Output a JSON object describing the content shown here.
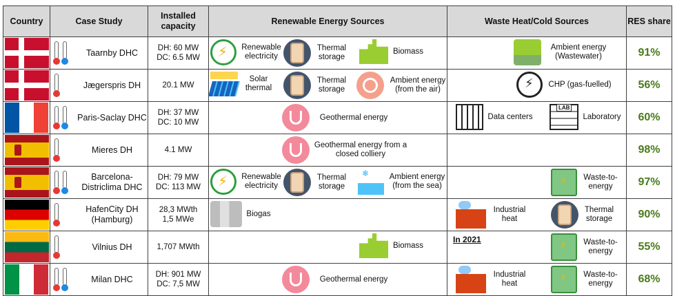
{
  "header": {
    "country": "Country",
    "case_study": "Case Study",
    "capacity": "Installed capacity",
    "renewable": "Renewable Energy Sources",
    "waste": "Waste Heat/Cold Sources",
    "res": "RES share"
  },
  "rows": [
    {
      "country": "Denmark",
      "name": "Taarnby DHC",
      "cap1": "DH: 60 MW",
      "cap2": "DC: 6.5 MW",
      "res": [
        "Renewable electricity",
        "Thermal storage",
        "Biomass"
      ],
      "waste": [
        "Ambient energy (Wastewater)"
      ],
      "share": "91%"
    },
    {
      "country": "Denmark",
      "name": "Jægerspris DH",
      "cap1": "20.1 MW",
      "res": [
        "Solar thermal",
        "Thermal storage",
        "Ambient energy (from the air)"
      ],
      "waste": [
        "CHP (gas-fuelled)"
      ],
      "share": "56%"
    },
    {
      "country": "France",
      "name": "Paris-Saclay DHC",
      "cap1": "DH: 37 MW",
      "cap2": "DC: 10 MW",
      "res": [
        "Geothermal energy"
      ],
      "waste": [
        "Data centers",
        "Laboratory"
      ],
      "lab_sign": "LAB",
      "share": "60%"
    },
    {
      "country": "Spain",
      "name": "Mieres DH",
      "cap1": "4.1 MW",
      "res": [
        "Geothermal energy from a closed colliery"
      ],
      "waste": [],
      "share": "98%"
    },
    {
      "country": "Spain",
      "name": "Barcelona-Districlima DHC",
      "cap1": "DH: 79 MW",
      "cap2": "DC: 113 MW",
      "res": [
        "Renewable electricity",
        "Thermal storage",
        "Ambient energy (from the sea)"
      ],
      "waste": [
        "Waste-to-energy"
      ],
      "share": "97%"
    },
    {
      "country": "Germany",
      "name": "HafenCity DH (Hamburg)",
      "cap1": "28,3 MWth",
      "cap2": "1,5 MWe",
      "res": [
        "Biogas"
      ],
      "waste": [
        "Industrial heat",
        "Thermal storage"
      ],
      "share": "90%"
    },
    {
      "country": "Lithuania",
      "name": "Vilnius DH",
      "cap1": "1,707 MWth",
      "res": [
        "Biomass"
      ],
      "waste_note": "In 2021",
      "waste": [
        "Waste-to-energy"
      ],
      "share": "55%"
    },
    {
      "country": "Italy",
      "name": "Milan DHC",
      "cap1": "DH: 901 MW",
      "cap2": "DC: 7,5 MW",
      "res": [
        "Geothermal energy"
      ],
      "waste": [
        "Industrial heat",
        "Waste-to-energy"
      ],
      "share": "68%"
    }
  ]
}
